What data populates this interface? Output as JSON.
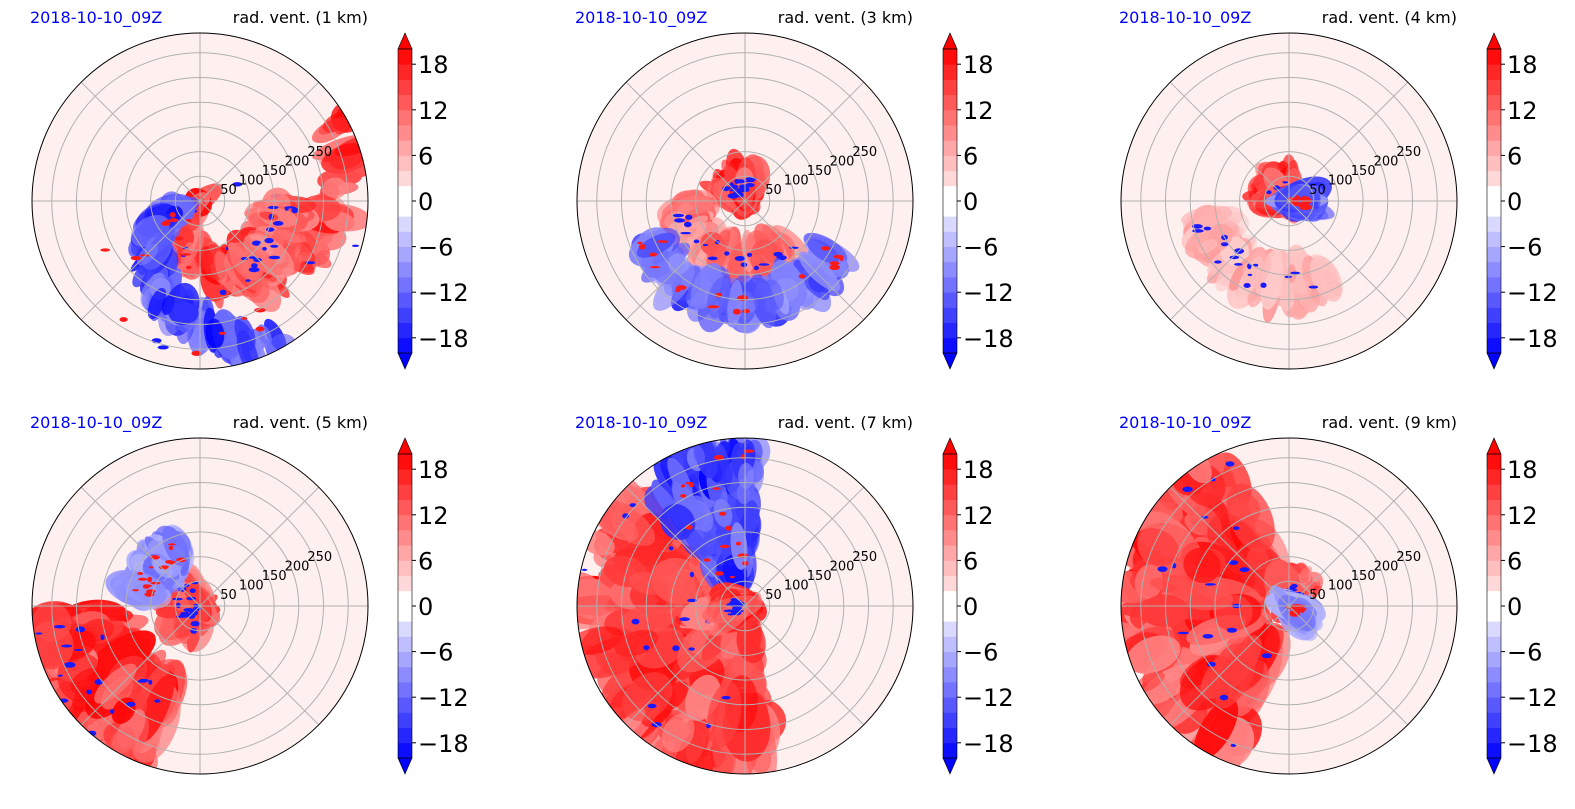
{
  "figure": {
    "colors": {
      "positive": "#ff0000",
      "negative": "#0000ff",
      "date_text": "#0000ff",
      "grid": "#b0b0b0",
      "background_tint": "#fff0f0"
    }
  },
  "chart_data": [
    {
      "type": "polar-contour",
      "date": "2018-10-10_09Z",
      "title": "rad. vent. (1 km)",
      "radial_ticks": [
        "50",
        "100",
        "150",
        "200",
        "250"
      ],
      "colorbar": {
        "ticks": [
          "18",
          "12",
          "6",
          "0",
          "−6",
          "−12",
          "−18"
        ],
        "range": [
          -20,
          20
        ],
        "extend": "both"
      },
      "features": [
        {
          "sign": "positive",
          "description_type": "spiral",
          "r_from": 20,
          "r_to": 330,
          "theta_from": 210,
          "theta_to": 390,
          "intensity": 1.0
        },
        {
          "sign": "negative",
          "description_type": "spiral",
          "r_from": 40,
          "r_to": 340,
          "theta_from": 190,
          "theta_to": 300,
          "intensity": 1.0
        },
        {
          "sign": "positive",
          "description_type": "band",
          "r_from": 140,
          "r_to": 200,
          "theta_from": 300,
          "theta_to": 360,
          "intensity": 0.9
        }
      ]
    },
    {
      "type": "polar-contour",
      "date": "2018-10-10_09Z",
      "title": "rad. vent. (3 km)",
      "radial_ticks": [
        "50",
        "100",
        "150",
        "200",
        "250"
      ],
      "colorbar": {
        "ticks": [
          "18",
          "12",
          "6",
          "0",
          "−6",
          "−12",
          "−18"
        ],
        "range": [
          -20,
          20
        ],
        "extend": "both"
      },
      "features": [
        {
          "sign": "positive",
          "description_type": "blob",
          "r_from": 10,
          "r_to": 50,
          "theta_from": 70,
          "theta_to": 160,
          "intensity": 1.0
        },
        {
          "sign": "positive",
          "description_type": "arc",
          "r_from": 100,
          "r_to": 140,
          "theta_from": 180,
          "theta_to": 320,
          "intensity": 0.7
        },
        {
          "sign": "negative",
          "description_type": "arc",
          "r_from": 180,
          "r_to": 230,
          "theta_from": 200,
          "theta_to": 330,
          "intensity": 0.8
        }
      ]
    },
    {
      "type": "polar-contour",
      "date": "2018-10-10_09Z",
      "title": "rad. vent. (4 km)",
      "radial_ticks": [
        "50",
        "100",
        "150",
        "200",
        "250"
      ],
      "colorbar": {
        "ticks": [
          "18",
          "12",
          "6",
          "0",
          "−6",
          "−12",
          "−18"
        ],
        "range": [
          -20,
          20
        ],
        "extend": "both"
      },
      "features": [
        {
          "sign": "positive",
          "description_type": "blob",
          "r_from": 5,
          "r_to": 45,
          "theta_from": 80,
          "theta_to": 200,
          "intensity": 1.0
        },
        {
          "sign": "negative",
          "description_type": "blob",
          "r_from": 5,
          "r_to": 40,
          "theta_from": 330,
          "theta_to": 390,
          "intensity": 0.9
        },
        {
          "sign": "positive",
          "description_type": "arc",
          "r_from": 140,
          "r_to": 200,
          "theta_from": 190,
          "theta_to": 300,
          "intensity": 0.4
        }
      ]
    },
    {
      "type": "polar-contour",
      "date": "2018-10-10_09Z",
      "title": "rad. vent. (5 km)",
      "radial_ticks": [
        "50",
        "100",
        "150",
        "200",
        "250"
      ],
      "colorbar": {
        "ticks": [
          "18",
          "12",
          "6",
          "0",
          "−6",
          "−12",
          "−18"
        ],
        "range": [
          -20,
          20
        ],
        "extend": "both"
      },
      "features": [
        {
          "sign": "positive",
          "description_type": "blob",
          "r_from": 5,
          "r_to": 55,
          "theta_from": 100,
          "theta_to": 260,
          "intensity": 1.0
        },
        {
          "sign": "positive",
          "description_type": "sector",
          "r_from": 180,
          "r_to": 340,
          "theta_from": 185,
          "theta_to": 250,
          "intensity": 1.0
        },
        {
          "sign": "negative",
          "description_type": "arc",
          "r_from": 100,
          "r_to": 140,
          "theta_from": 110,
          "theta_to": 170,
          "intensity": 0.6
        }
      ]
    },
    {
      "type": "polar-contour",
      "date": "2018-10-10_09Z",
      "title": "rad. vent. (7 km)",
      "radial_ticks": [
        "50",
        "100",
        "150",
        "200",
        "250"
      ],
      "colorbar": {
        "ticks": [
          "18",
          "12",
          "6",
          "0",
          "−6",
          "−12",
          "−18"
        ],
        "range": [
          -20,
          20
        ],
        "extend": "both"
      },
      "features": [
        {
          "sign": "positive",
          "description_type": "sector",
          "r_from": 40,
          "r_to": 340,
          "theta_from": 135,
          "theta_to": 280,
          "intensity": 1.0
        },
        {
          "sign": "negative",
          "description_type": "wedge",
          "r_from": 60,
          "r_to": 340,
          "theta_from": 85,
          "theta_to": 130,
          "intensity": 1.0
        },
        {
          "sign": "positive",
          "description_type": "blob",
          "r_from": 10,
          "r_to": 35,
          "theta_from": 150,
          "theta_to": 230,
          "intensity": 1.0
        }
      ]
    },
    {
      "type": "polar-contour",
      "date": "2018-10-10_09Z",
      "title": "rad. vent. (9 km)",
      "radial_ticks": [
        "50",
        "100",
        "150",
        "200",
        "250"
      ],
      "colorbar": {
        "ticks": [
          "18",
          "12",
          "6",
          "0",
          "−6",
          "−12",
          "−18"
        ],
        "range": [
          -20,
          20
        ],
        "extend": "both"
      },
      "features": [
        {
          "sign": "positive",
          "description_type": "sector",
          "r_from": 80,
          "r_to": 340,
          "theta_from": 110,
          "theta_to": 250,
          "intensity": 1.0
        },
        {
          "sign": "positive",
          "description_type": "blob",
          "r_from": 5,
          "r_to": 45,
          "theta_from": 30,
          "theta_to": 120,
          "intensity": 0.9
        },
        {
          "sign": "negative",
          "description_type": "blob",
          "r_from": 5,
          "r_to": 30,
          "theta_from": 300,
          "theta_to": 360,
          "intensity": 0.6
        }
      ]
    }
  ]
}
